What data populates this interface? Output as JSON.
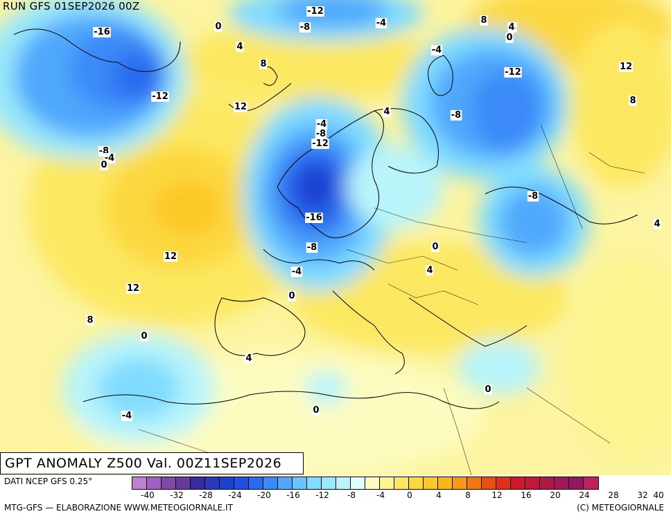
{
  "header": {
    "run": "RUN GFS 01SEP2026 00Z"
  },
  "title": "GPT ANOMALY Z500 Val. 00Z11SEP2026",
  "footer": {
    "source": "DATI NCEP GFS 0.25°",
    "credit": "MTG-GFS — ELABORAZIONE WWW.METEOGIORNALE.IT",
    "copyright": "(C) METEOGIORNALE"
  },
  "colorbar": {
    "colors": [
      "#c080d0",
      "#a060c0",
      "#8048a8",
      "#6a3a9a",
      "#3a2aa0",
      "#2a3ab8",
      "#1c40d0",
      "#2050e0",
      "#2a6cf0",
      "#3a8af8",
      "#50a8fc",
      "#6ac4ff",
      "#80dcff",
      "#9ae8fa",
      "#b8f4fa",
      "#e0fcfc",
      "#fcfcc0",
      "#fcf490",
      "#fce860",
      "#fcd840",
      "#fcc828",
      "#f8b818",
      "#f89818",
      "#f07810",
      "#e85010",
      "#e03018",
      "#d01828",
      "#c01838",
      "#b01848",
      "#a01858",
      "#901860",
      "#c02060"
    ],
    "labels": [
      "-40",
      "-32",
      "-28",
      "-24",
      "-20",
      "-16",
      "-12",
      "-8",
      "-4",
      "0",
      "4",
      "8",
      "12",
      "16",
      "20",
      "24",
      "28",
      "32",
      "40"
    ]
  },
  "contour_labels": [
    "-16",
    "-12",
    "-8",
    "-4",
    "0",
    "-12",
    "-8",
    "-4",
    "0",
    "4",
    "8",
    "4",
    "8",
    "12",
    "-4",
    "-12",
    "-8",
    "0",
    "-4",
    "-8",
    "-12",
    "12",
    "4",
    "12",
    "-16",
    "-8",
    "-4",
    "0",
    "12",
    "8",
    "4",
    "0",
    "4",
    "0",
    "-8",
    "4",
    "-4",
    "0",
    "0",
    "4",
    "8"
  ]
}
